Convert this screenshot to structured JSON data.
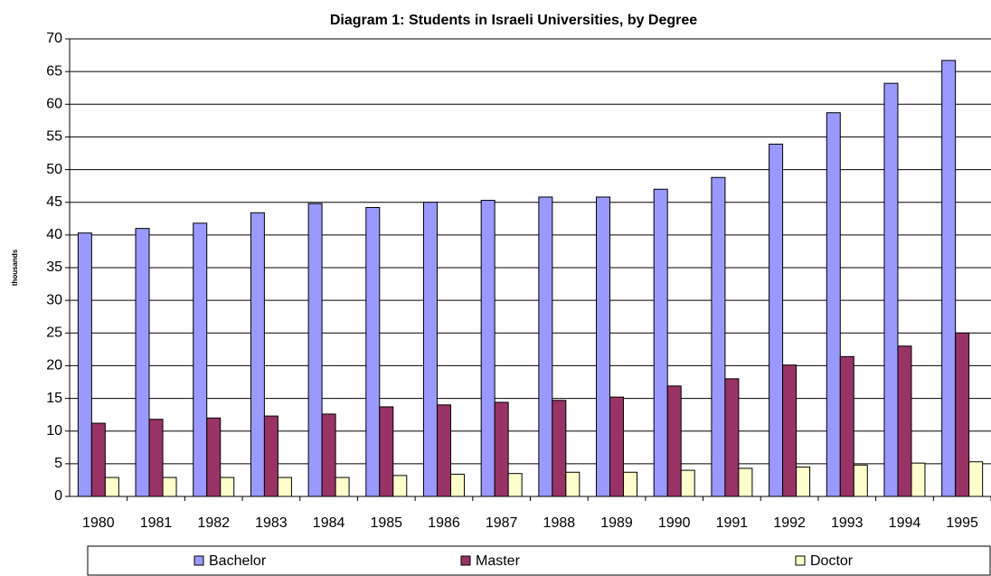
{
  "chart_data": {
    "type": "bar",
    "title": "Diagram 1: Students in Israeli Universities, by Degree",
    "y_label": "thousands",
    "categories": [
      "1980",
      "1981",
      "1982",
      "1983",
      "1984",
      "1985",
      "1986",
      "1987",
      "1988",
      "1989",
      "1990",
      "1991",
      "1992",
      "1993",
      "1994",
      "1995"
    ],
    "series": [
      {
        "name": "Bachelor",
        "color": "#9999ff",
        "values": [
          40.3,
          41.0,
          41.8,
          43.4,
          44.8,
          44.2,
          45.0,
          45.3,
          45.8,
          45.8,
          47.0,
          48.8,
          53.9,
          58.7,
          63.2,
          66.7
        ]
      },
      {
        "name": "Master",
        "color": "#993366",
        "values": [
          11.2,
          11.8,
          12.0,
          12.3,
          12.6,
          13.7,
          14.0,
          14.4,
          14.7,
          15.2,
          16.9,
          18.0,
          20.1,
          21.4,
          23.0,
          25.0
        ]
      },
      {
        "name": "Doctor",
        "color": "#ffffcc",
        "values": [
          2.9,
          2.9,
          2.9,
          2.9,
          2.9,
          3.2,
          3.4,
          3.5,
          3.7,
          3.7,
          4.0,
          4.3,
          4.5,
          4.8,
          5.1,
          5.3
        ]
      }
    ],
    "ylim": [
      0,
      70
    ],
    "yticks": [
      0,
      5,
      10,
      15,
      20,
      25,
      30,
      35,
      40,
      45,
      50,
      55,
      60,
      65,
      70
    ],
    "grid": true,
    "legend": "bottom"
  }
}
